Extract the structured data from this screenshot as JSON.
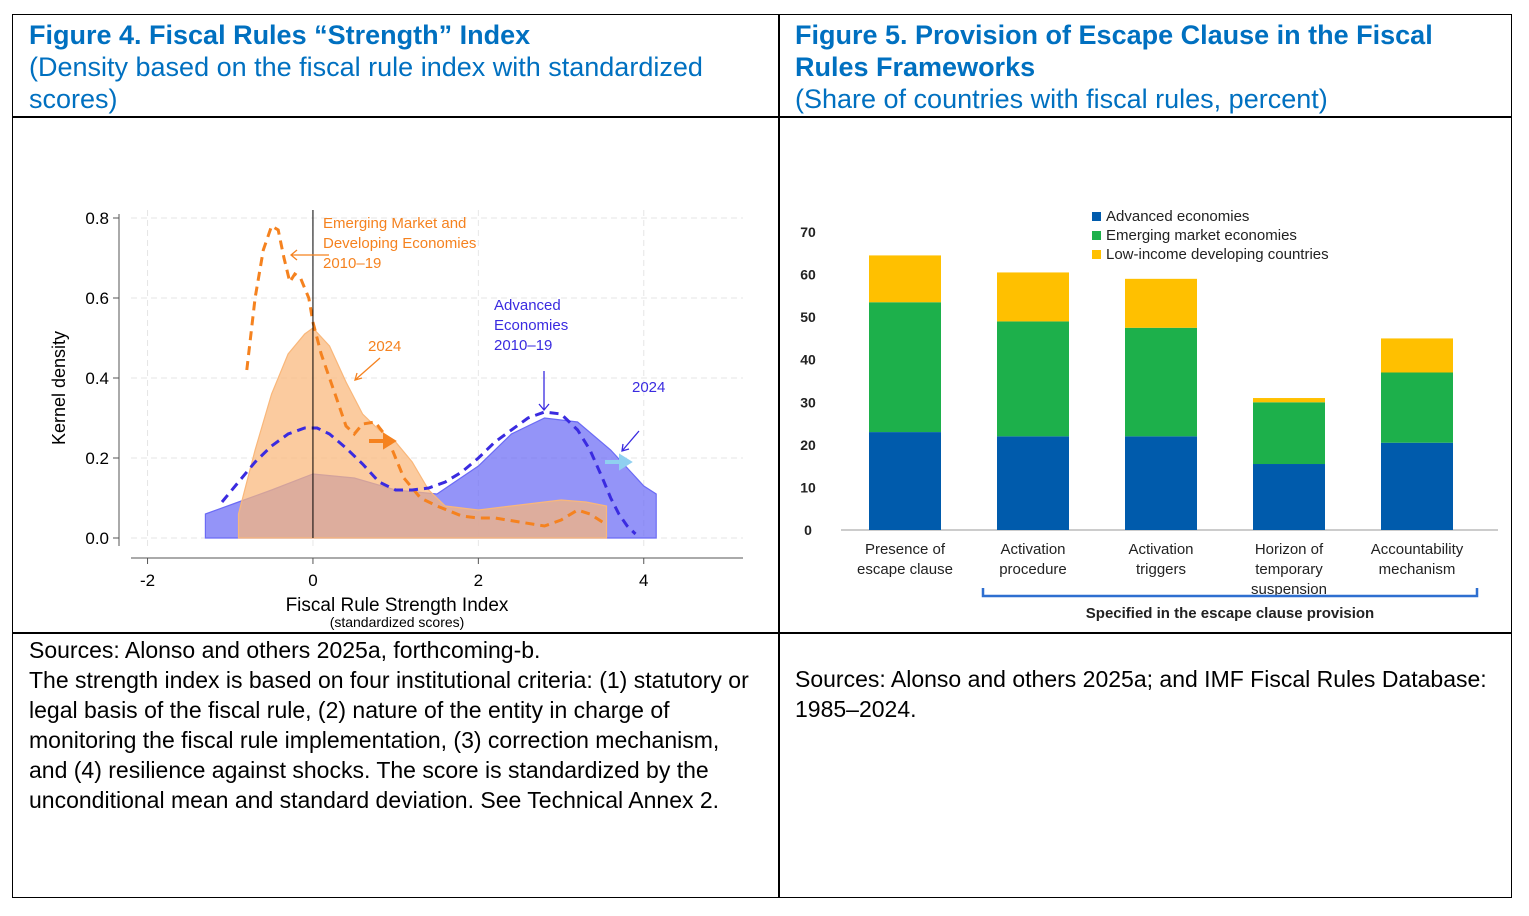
{
  "left_panel": {
    "title": "Figure 4. Fiscal Rules “Strength” Index",
    "subtitle": "(Density based on the fiscal rule index with standardized scores)",
    "notes": [
      "Sources: Alonso and others 2025a, forthcoming-b.",
      "The strength index is based on four institutional criteria: (1) statutory or legal basis of the fiscal rule, (2) nature of the entity in charge of monitoring the fiscal rule implementation, (3) correction mechanism, and (4) resilience against shocks. The score is standardized by the unconditional mean and standard deviation. See Technical Annex 2."
    ]
  },
  "right_panel": {
    "title": "Figure 5. Provision of Escape Clause in the Fiscal Rules Frameworks",
    "subtitle": "(Share of countries with fiscal rules, percent)",
    "notes": "Sources: Alonso and others 2025a; and IMF Fiscal Rules Database: 1985–2024."
  },
  "colors": {
    "title_blue": "#0070c0",
    "advanced": "#005bac",
    "emerging": "#1db04b",
    "lowincome": "#ffc000",
    "orange": "#f5821f",
    "blue_dash": "#3a2be0"
  },
  "chart_data": [
    {
      "type": "area",
      "title": "Fiscal Rules “Strength” Index",
      "xlabel": "Fiscal Rule Strength Index",
      "xlabel_sub": "(standardized scores)",
      "ylabel": "Kernel density",
      "xlim": [
        -2.2,
        5.2
      ],
      "ylim": [
        -0.02,
        0.82
      ],
      "xticks": [
        -2,
        0,
        2,
        4
      ],
      "yticks": [
        0.0,
        0.2,
        0.4,
        0.6,
        0.8
      ],
      "ytick_labels": [
        "0.0",
        "0.2",
        "0.4",
        "0.6",
        "0.8"
      ],
      "grid": true,
      "series": [
        {
          "name": "Advanced Economies 2024",
          "style": "filled",
          "color": "#6b6bf5",
          "x": [
            -1.3,
            -0.9,
            -0.5,
            0.0,
            0.5,
            1.0,
            1.5,
            2.0,
            2.4,
            2.8,
            3.2,
            3.6,
            4.0,
            4.15,
            4.15
          ],
          "y": [
            0.06,
            0.09,
            0.12,
            0.16,
            0.15,
            0.12,
            0.11,
            0.18,
            0.26,
            0.3,
            0.29,
            0.22,
            0.13,
            0.11,
            0.0
          ]
        },
        {
          "name": "Emerging Market and Developing Economies 2024",
          "style": "filled",
          "color": "#f9b77a",
          "x": [
            -0.9,
            -0.7,
            -0.5,
            -0.3,
            -0.1,
            0.0,
            0.2,
            0.4,
            0.6,
            0.8,
            1.0,
            1.2,
            1.4,
            1.6,
            1.8,
            2.0,
            2.4,
            2.8,
            3.0,
            3.3,
            3.55,
            3.55
          ],
          "y": [
            0.06,
            0.22,
            0.36,
            0.46,
            0.51,
            0.525,
            0.48,
            0.39,
            0.31,
            0.27,
            0.24,
            0.19,
            0.12,
            0.08,
            0.075,
            0.07,
            0.08,
            0.09,
            0.095,
            0.09,
            0.08,
            0.0
          ]
        },
        {
          "name": "Emerging Market and Developing Economies 2010–19",
          "style": "dashed",
          "color": "#f5821f",
          "x": [
            -0.8,
            -0.7,
            -0.6,
            -0.5,
            -0.42,
            -0.35,
            -0.28,
            -0.22,
            -0.15,
            -0.05,
            0.0,
            0.1,
            0.2,
            0.3,
            0.4,
            0.5,
            0.6,
            0.75,
            0.9,
            1.0,
            1.1,
            1.3,
            1.5,
            1.8,
            2.0,
            2.2,
            2.5,
            2.8,
            3.0,
            3.2,
            3.35,
            3.5
          ],
          "y": [
            0.42,
            0.6,
            0.72,
            0.78,
            0.77,
            0.7,
            0.64,
            0.66,
            0.65,
            0.6,
            0.54,
            0.46,
            0.4,
            0.34,
            0.28,
            0.26,
            0.285,
            0.29,
            0.25,
            0.2,
            0.15,
            0.1,
            0.08,
            0.055,
            0.05,
            0.05,
            0.04,
            0.03,
            0.045,
            0.07,
            0.06,
            0.04
          ]
        },
        {
          "name": "Advanced Economies 2010–19",
          "style": "dashed",
          "color": "#3a2be0",
          "x": [
            -1.1,
            -0.9,
            -0.7,
            -0.5,
            -0.3,
            -0.1,
            0.05,
            0.2,
            0.4,
            0.6,
            0.8,
            1.0,
            1.2,
            1.4,
            1.6,
            1.8,
            2.0,
            2.2,
            2.4,
            2.6,
            2.8,
            3.0,
            3.2,
            3.35,
            3.5,
            3.6,
            3.7,
            3.8,
            3.9
          ],
          "y": [
            0.09,
            0.14,
            0.19,
            0.23,
            0.26,
            0.275,
            0.275,
            0.26,
            0.225,
            0.185,
            0.14,
            0.12,
            0.12,
            0.125,
            0.14,
            0.165,
            0.2,
            0.24,
            0.27,
            0.3,
            0.315,
            0.31,
            0.27,
            0.22,
            0.15,
            0.1,
            0.06,
            0.03,
            0.01
          ]
        }
      ],
      "annotations": [
        {
          "lines": [
            "Emerging Market and",
            "Developing Economies",
            "2010–19"
          ],
          "color": "#f5821f"
        },
        {
          "lines": [
            "2024"
          ],
          "color": "#f5821f"
        },
        {
          "lines": [
            "Advanced",
            "Economies",
            "2010–19"
          ],
          "color": "#3a2be0"
        },
        {
          "lines": [
            "2024"
          ],
          "color": "#3a2be0"
        }
      ]
    },
    {
      "type": "bar",
      "stacked": true,
      "title": "Provision of Escape Clause in the Fiscal Rules Frameworks",
      "ylim": [
        0,
        70
      ],
      "yticks": [
        0,
        10,
        20,
        30,
        40,
        50,
        60,
        70
      ],
      "categories": [
        [
          "Presence of",
          "escape clause"
        ],
        [
          "Activation",
          "procedure"
        ],
        [
          "Activation",
          "triggers"
        ],
        [
          "Horizon of",
          "temporary",
          "suspension"
        ],
        [
          "Accountability",
          "mechanism"
        ]
      ],
      "series": [
        {
          "name": "Advanced economies",
          "color": "#005bac",
          "values": [
            23,
            22,
            22,
            15.5,
            20.5
          ]
        },
        {
          "name": "Emerging market economies",
          "color": "#1db04b",
          "values": [
            30.5,
            27,
            25.5,
            14.5,
            16.5
          ]
        },
        {
          "name": "Low-income developing countries",
          "color": "#ffc000",
          "values": [
            11,
            11.5,
            11.5,
            1,
            8
          ]
        }
      ],
      "bracket_label": "Specified in the escape clause provision",
      "legend_position": "top"
    }
  ]
}
